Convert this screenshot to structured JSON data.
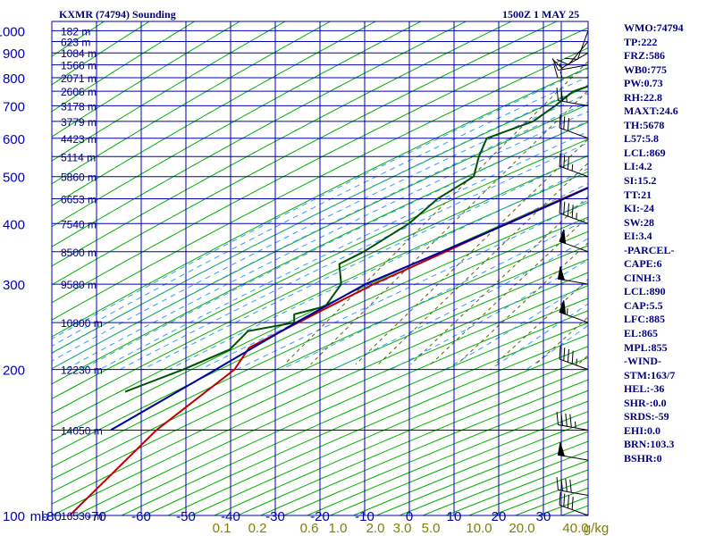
{
  "header": {
    "title": "KXMR (74794) Sounding",
    "datetime": "1500Z  1 MAY 25"
  },
  "colors": {
    "grid": "#0000b0",
    "dry_adiabat": "#00b000",
    "mixing_ratio": "#606000",
    "moist_adiabat": "#3399ff",
    "temperature": "#c00000",
    "dewpoint": "#005000",
    "parcel": "#0000a0",
    "label": "#000080",
    "mixing_label": "#808000"
  },
  "indices": [
    "WMO:74794",
    "TP:222",
    "FRZ:586",
    "WB0:775",
    "PW:0.73",
    "RH:22.8",
    "MAXT:24.6",
    "TH:5678",
    "L57:5.8",
    "LCL:869",
    "LI:4.2",
    "SI:15.2",
    "TT:21",
    "KI:-24",
    "SW:28",
    "EI:3.4",
    "-PARCEL-",
    "CAPE:6",
    "CINH:3",
    "LCL:890",
    "CAP:5.5",
    "LFC:885",
    "EL:865",
    "MPL:855",
    "-WIND-",
    "STM:163/7",
    "HEL:-36",
    "SHR-:0.0",
    "SRDS:-59",
    "EHI:0.0",
    "BRN:103.3",
    "BSHR:0"
  ],
  "chart_data": {
    "type": "line",
    "chart_kind": "skew-T log-P sounding",
    "pressure_axis": {
      "label": "mb",
      "scale": "log",
      "range": [
        1000,
        100
      ],
      "ticks": [
        100,
        200,
        300,
        400,
        500,
        600,
        700,
        800,
        900,
        1000
      ]
    },
    "temperature_axis": {
      "range": [
        -80,
        40
      ],
      "ticks": [
        -80,
        -70,
        -60,
        -50,
        -40,
        -30,
        -20,
        -10,
        0,
        10,
        20,
        30,
        40
      ]
    },
    "height_labels": [
      {
        "p": 100,
        "text": "16530 m"
      },
      {
        "p": 150,
        "text": "14050 m"
      },
      {
        "p": 200,
        "text": "12230 m"
      },
      {
        "p": 250,
        "text": "10800 m"
      },
      {
        "p": 300,
        "text": "9580 m"
      },
      {
        "p": 350,
        "text": "8500 m"
      },
      {
        "p": 400,
        "text": "7540 m"
      },
      {
        "p": 450,
        "text": "6653 m"
      },
      {
        "p": 500,
        "text": "5860 m"
      },
      {
        "p": 550,
        "text": "5114 m"
      },
      {
        "p": 600,
        "text": "4423 m"
      },
      {
        "p": 650,
        "text": "3779 m"
      },
      {
        "p": 700,
        "text": "3178 m"
      },
      {
        "p": 750,
        "text": "2606 m"
      },
      {
        "p": 800,
        "text": "2071 m"
      },
      {
        "p": 850,
        "text": "1566 m"
      },
      {
        "p": 900,
        "text": "1084 m"
      },
      {
        "p": 950,
        "text": "623 m"
      },
      {
        "p": 1000,
        "text": "182 m"
      }
    ],
    "mixing_ratio_labels": [
      "0.1",
      "0.2",
      "0.6",
      "1.0",
      "2.0",
      "3.0",
      "5.0",
      "10.0",
      "20.0",
      "40.0"
    ],
    "mixing_ratio_values": [
      0.1,
      0.2,
      0.6,
      1.0,
      2.0,
      3.0,
      5.0,
      10.0,
      20.0,
      40.0
    ],
    "mixing_ratio_label_x": [
      248,
      288,
      346,
      378,
      420,
      450,
      482,
      536,
      584,
      644
    ],
    "bottom_end_label": "g/kg",
    "series": [
      {
        "key": "temperature",
        "points": [
          [
            1007,
            23.6
          ],
          [
            1000,
            23.1
          ],
          [
            950,
            19.0
          ],
          [
            900,
            14.7
          ],
          [
            880,
            13.4
          ],
          [
            860,
            13.0
          ],
          [
            850,
            14.3
          ],
          [
            800,
            12.1
          ],
          [
            750,
            7.8
          ],
          [
            700,
            3.3
          ],
          [
            650,
            -1.3
          ],
          [
            630,
            -3.3
          ],
          [
            600,
            -5.0
          ],
          [
            550,
            -10.1
          ],
          [
            500,
            -16.4
          ],
          [
            450,
            -23.5
          ],
          [
            400,
            -31.5
          ],
          [
            350,
            -40.1
          ],
          [
            300,
            -50.3
          ],
          [
            260,
            -58.0
          ],
          [
            222,
            -66.5
          ],
          [
            200,
            -65.8
          ],
          [
            150,
            -72.2
          ],
          [
            100,
            -76.0
          ]
        ]
      },
      {
        "key": "dewpoint",
        "points": [
          [
            1007,
            4.6
          ],
          [
            1000,
            4.3
          ],
          [
            950,
            1.8
          ],
          [
            900,
            0.5
          ],
          [
            880,
            -0.3
          ],
          [
            860,
            -1.7
          ],
          [
            850,
            -30.3
          ],
          [
            835,
            -24.0
          ],
          [
            830,
            -31.1
          ],
          [
            800,
            -34.2
          ],
          [
            750,
            -40.8
          ],
          [
            700,
            -42.2
          ],
          [
            650,
            -44.3
          ],
          [
            600,
            -51.6
          ],
          [
            550,
            -50.0
          ],
          [
            500,
            -47.5
          ],
          [
            450,
            -51.5
          ],
          [
            400,
            -53.4
          ],
          [
            350,
            -58.4
          ],
          [
            330,
            -61.6
          ],
          [
            300,
            -57.5
          ],
          [
            270,
            -57.0
          ],
          [
            260,
            -62.5
          ],
          [
            250,
            -61.0
          ],
          [
            240,
            -69.8
          ],
          [
            220,
            -70.5
          ],
          [
            200,
            -77.3
          ],
          [
            180,
            -86.2
          ]
        ]
      },
      {
        "key": "parcel",
        "points": [
          [
            1007,
            23.6
          ],
          [
            1000,
            21.7
          ],
          [
            950,
            17.1
          ],
          [
            900,
            12.5
          ],
          [
            890,
            11.7
          ],
          [
            850,
            10.1
          ],
          [
            800,
            7.9
          ],
          [
            750,
            5.1
          ],
          [
            700,
            2.1
          ],
          [
            650,
            -1.5
          ],
          [
            600,
            -5.7
          ],
          [
            550,
            -10.6
          ],
          [
            500,
            -16.4
          ],
          [
            450,
            -23.2
          ],
          [
            400,
            -31.3
          ],
          [
            350,
            -40.9
          ],
          [
            300,
            -52.1
          ],
          [
            250,
            -60.6
          ],
          [
            200,
            -70.0
          ],
          [
            150,
            -82.4
          ]
        ]
      }
    ],
    "winds": [
      {
        "p": 1000,
        "dir": 200,
        "spd": 10
      },
      {
        "p": 950,
        "dir": 220,
        "spd": 10
      },
      {
        "p": 900,
        "dir": 240,
        "spd": 10
      },
      {
        "p": 850,
        "dir": 260,
        "spd": 15
      },
      {
        "p": 800,
        "dir": 270,
        "spd": 15
      },
      {
        "p": 700,
        "dir": 280,
        "spd": 25
      },
      {
        "p": 600,
        "dir": 290,
        "spd": 30
      },
      {
        "p": 500,
        "dir": 290,
        "spd": 35
      },
      {
        "p": 400,
        "dir": 290,
        "spd": 45
      },
      {
        "p": 350,
        "dir": 290,
        "spd": 50
      },
      {
        "p": 300,
        "dir": 280,
        "spd": 50
      },
      {
        "p": 250,
        "dir": 290,
        "spd": 55
      },
      {
        "p": 200,
        "dir": 290,
        "spd": 45
      },
      {
        "p": 150,
        "dir": 280,
        "spd": 45
      },
      {
        "p": 130,
        "dir": 280,
        "spd": 50
      },
      {
        "p": 110,
        "dir": 280,
        "spd": 40
      },
      {
        "p": 100,
        "dir": 290,
        "spd": 40
      }
    ]
  }
}
